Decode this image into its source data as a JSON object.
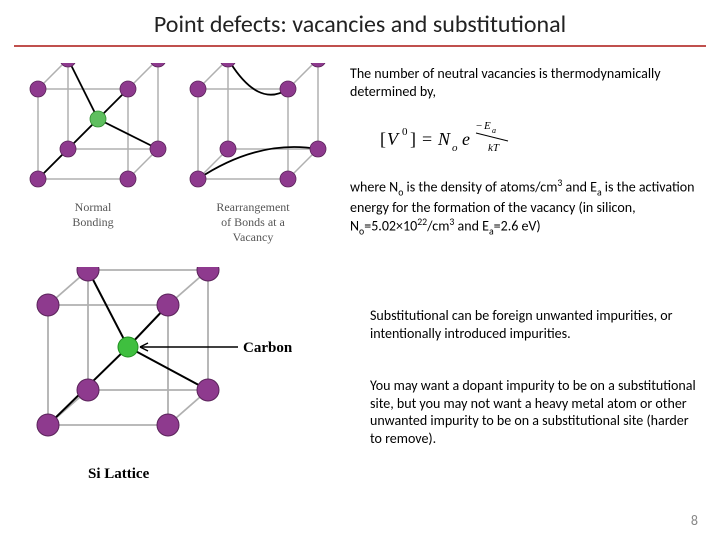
{
  "title": "Point defects: vacancies and substitutional",
  "title_underline_color": "#c0504d",
  "page_number": "8",
  "diagrams": {
    "top": {
      "normal_label": "Normal\nBonding",
      "vacancy_label": "Rearrangement\nof Bonds at a\nVacancy",
      "atom_color": "#8e3a8e",
      "vacancy_atom_color": "#5fbf5f",
      "edge_color": "#b0b0b0",
      "bond_color": "#000000"
    },
    "bottom": {
      "carbon_label": "Carbon",
      "lattice_label": "Si Lattice",
      "si_color": "#8e3a8e",
      "carbon_color": "#3fbf3f",
      "edge_color": "#b0b0b0",
      "bond_color": "#000000"
    }
  },
  "text": {
    "intro": "The number of neutral vacancies is thermodynamically determined by,",
    "equation": {
      "lhs": "[V",
      "lhs_sup": "0",
      "lhs_close": "] = N",
      "no_sub": "o",
      "exp_e": "e",
      "exp_num_neg": "−E",
      "exp_num_sub": "a",
      "exp_den": "kT"
    },
    "where_html": "where N<sub>o</sub> is the density of atoms/cm<sup>3</sup> and E<sub>a</sub> is the activation energy for the formation of the vacancy (in silicon, N<sub>o</sub>=5.02×10<sup>22</sup>/cm<sup>3</sup> and E<sub>a</sub>=2.6 eV)",
    "sub1": "Substitutional can be foreign unwanted impurities, or intentionally introduced impurities.",
    "sub2": "You may want a dopant impurity to be on a substitutional site, but you may not want a heavy metal atom or other unwanted impurity to be on a substitutional site (harder to remove)."
  },
  "style": {
    "body_fontsize": 14,
    "title_fontsize": 24,
    "title_color": "#222222",
    "text_color": "#000000",
    "pagenum_color": "#888888",
    "background": "#ffffff"
  }
}
